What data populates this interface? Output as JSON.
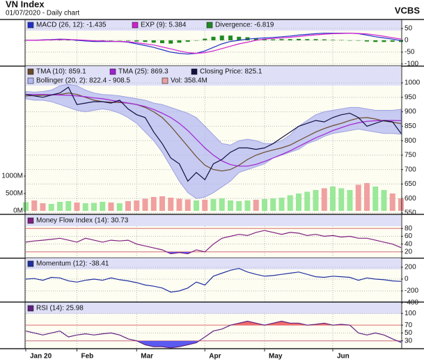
{
  "chart_data": [
    {
      "type": "macd",
      "title": "VN Index",
      "subtitle": "01/07/2020 - Daily chart",
      "source": "VCBS",
      "ylim": [
        -109,
        88
      ],
      "yticks": [
        50,
        0,
        -50,
        -100
      ],
      "series": [
        {
          "name": "MACD (26, 12): -1.435",
          "color": "#2030c8",
          "type": "line",
          "values": [
            0,
            0,
            2,
            3,
            5,
            4,
            0,
            -3,
            -5,
            -5,
            -5,
            -5,
            -8,
            -15,
            -22,
            -30,
            -40,
            -50,
            -55,
            -58,
            -55,
            -45,
            -30,
            -15,
            -5,
            0,
            5,
            8,
            10,
            12,
            15,
            18,
            22,
            25,
            28,
            30,
            30,
            30,
            30,
            28,
            22,
            15,
            10,
            5,
            -1.435
          ]
        },
        {
          "name": "EXP (9): 5.384",
          "color": "#d020d0",
          "type": "line",
          "values": [
            0,
            0,
            1,
            2,
            3,
            3,
            2,
            0,
            -2,
            -3,
            -4,
            -5,
            -6,
            -10,
            -15,
            -20,
            -28,
            -36,
            -45,
            -52,
            -55,
            -52,
            -45,
            -35,
            -25,
            -15,
            -8,
            0,
            5,
            8,
            10,
            13,
            16,
            20,
            23,
            26,
            28,
            29,
            30,
            29,
            27,
            22,
            17,
            11,
            5.384
          ]
        },
        {
          "name": "Divergence: -6.819",
          "color": "#208a20",
          "type": "bar",
          "values": [
            0,
            0,
            1,
            1,
            2,
            1,
            -2,
            -3,
            -3,
            -2,
            -1,
            0,
            -2,
            -5,
            -7,
            -10,
            -12,
            -14,
            -10,
            -6,
            0,
            7,
            15,
            20,
            20,
            15,
            13,
            8,
            5,
            4,
            5,
            5,
            6,
            5,
            5,
            4,
            2,
            1,
            0,
            -1,
            -5,
            -7,
            -7,
            -6,
            -6.819
          ]
        }
      ]
    },
    {
      "type": "price",
      "ylim": [
        545,
        1058
      ],
      "yticks": [
        1000,
        950,
        900,
        850,
        800,
        750,
        700,
        650,
        600,
        550
      ],
      "y2lim": [
        -100,
        4160
      ],
      "y2ticks": [
        {
          "value": 1000,
          "label": "1000M"
        },
        {
          "value": 500,
          "label": "500M"
        },
        {
          "value": 0,
          "label": "0M"
        }
      ],
      "up_color": "#9ae89a",
      "down_color": "#f0a0a0",
      "series": [
        {
          "name": "TMA (10): 859.1",
          "color": "#6b4a2a",
          "type": "line",
          "values": [
            955,
            956,
            957,
            958,
            960,
            965,
            960,
            950,
            940,
            935,
            933,
            932,
            930,
            925,
            915,
            900,
            880,
            850,
            815,
            780,
            745,
            715,
            700,
            695,
            700,
            715,
            735,
            750,
            760,
            768,
            775,
            785,
            800,
            815,
            830,
            842,
            852,
            860,
            870,
            878,
            880,
            875,
            868,
            864,
            859.1
          ]
        },
        {
          "name": "TMA (25): 869.3",
          "color": "#a020d0",
          "type": "line",
          "values": [
            960,
            960,
            960,
            959,
            958,
            957,
            955,
            952,
            948,
            945,
            940,
            935,
            930,
            925,
            918,
            908,
            895,
            880,
            860,
            835,
            805,
            775,
            750,
            730,
            717,
            712,
            712,
            718,
            728,
            740,
            752,
            765,
            780,
            795,
            810,
            822,
            835,
            845,
            855,
            862,
            867,
            869,
            870,
            870,
            869.3
          ]
        },
        {
          "name": "Closing Price: 825.1",
          "color": "#101040",
          "type": "line",
          "values": [
            960,
            955,
            950,
            958,
            965,
            985,
            925,
            930,
            935,
            935,
            930,
            940,
            910,
            890,
            880,
            830,
            790,
            740,
            720,
            660,
            690,
            665,
            720,
            735,
            760,
            775,
            775,
            770,
            775,
            790,
            810,
            830,
            850,
            860,
            870,
            865,
            880,
            890,
            895,
            880,
            850,
            860,
            870,
            865,
            825.1
          ]
        },
        {
          "name": "Bollinger (20, 2): 822.4 - 908.5",
          "color": "#b4b8f0",
          "type": "band",
          "upper": [
            970,
            968,
            970,
            975,
            990,
            995,
            990,
            975,
            965,
            960,
            958,
            955,
            950,
            945,
            940,
            930,
            925,
            915,
            905,
            895,
            880,
            850,
            820,
            790,
            785,
            800,
            805,
            800,
            790,
            790,
            800,
            820,
            850,
            870,
            890,
            900,
            905,
            910,
            915,
            915,
            910,
            905,
            905,
            905,
            908.5
          ],
          "lower": [
            945,
            940,
            940,
            935,
            925,
            915,
            905,
            900,
            905,
            910,
            905,
            895,
            880,
            860,
            830,
            800,
            760,
            710,
            660,
            620,
            600,
            605,
            620,
            640,
            660,
            690,
            700,
            710,
            720,
            740,
            750,
            760,
            770,
            790,
            800,
            815,
            825,
            830,
            835,
            840,
            835,
            830,
            825,
            825,
            822.4
          ]
        },
        {
          "name": "Vol: 358.4M",
          "color": "#e8a0a0",
          "type": "volume",
          "axis": "y2",
          "values": [
            250,
            300,
            220,
            200,
            260,
            280,
            240,
            220,
            230,
            260,
            240,
            220,
            280,
            300,
            350,
            400,
            420,
            380,
            350,
            330,
            300,
            320,
            340,
            360,
            300,
            280,
            300,
            320,
            340,
            360,
            380,
            450,
            500,
            550,
            600,
            650,
            700,
            650,
            600,
            750,
            800,
            700,
            600,
            500,
            358.4
          ]
        }
      ]
    },
    {
      "type": "oscillator",
      "ylim": [
        3.6,
        114.5
      ],
      "yticks": [
        80,
        60,
        40,
        20
      ],
      "overbought": 80,
      "oversold": 20,
      "overbought_color": "#f06a6a",
      "oversold_color": "#5a5af0",
      "series": [
        {
          "name": "Money Flow Index (14): 30.73",
          "color": "#802080",
          "type": "line",
          "values": [
            45,
            48,
            50,
            52,
            55,
            50,
            45,
            55,
            50,
            45,
            50,
            48,
            50,
            40,
            35,
            30,
            25,
            15,
            18,
            15,
            25,
            20,
            40,
            55,
            60,
            65,
            62,
            70,
            75,
            70,
            65,
            70,
            68,
            62,
            65,
            60,
            62,
            58,
            60,
            55,
            55,
            50,
            45,
            40,
            30.73
          ]
        }
      ]
    },
    {
      "type": "oscillator",
      "ylim": [
        -388,
        353
      ],
      "yticks": [
        200,
        0,
        -200,
        -400
      ],
      "series": [
        {
          "name": "Momentum (12): -38.41",
          "color": "#2030a0",
          "type": "line",
          "values": [
            0,
            10,
            -20,
            30,
            20,
            -30,
            -50,
            -20,
            0,
            -20,
            20,
            -10,
            -30,
            -60,
            -100,
            -120,
            -150,
            -220,
            -200,
            -150,
            -50,
            -100,
            50,
            100,
            150,
            180,
            120,
            80,
            50,
            60,
            80,
            100,
            120,
            80,
            40,
            30,
            50,
            40,
            30,
            -20,
            20,
            0,
            -10,
            -30,
            -38.41
          ]
        }
      ]
    },
    {
      "type": "oscillator",
      "ylim": [
        10,
        127
      ],
      "yticks": [
        100,
        70,
        50,
        30
      ],
      "overbought": 70,
      "oversold": 30,
      "overbought_color": "#f06a6a",
      "oversold_color": "#5a5af0",
      "categories": [
        "Jan 20",
        null,
        null,
        null,
        null,
        null,
        "Feb",
        null,
        null,
        null,
        null,
        null,
        null,
        "Mar",
        null,
        null,
        null,
        null,
        null,
        null,
        null,
        "Apr",
        null,
        null,
        null,
        null,
        null,
        null,
        "May",
        null,
        null,
        null,
        null,
        null,
        null,
        null,
        "Jun",
        null,
        null,
        null,
        null,
        null,
        null,
        null,
        null
      ],
      "series": [
        {
          "name": "RSI (14): 25.98",
          "color": "#602080",
          "type": "line",
          "values": [
            55,
            50,
            45,
            50,
            55,
            40,
            45,
            48,
            45,
            48,
            50,
            45,
            35,
            30,
            20,
            15,
            15,
            12,
            15,
            20,
            25,
            40,
            55,
            60,
            70,
            75,
            80,
            75,
            70,
            75,
            80,
            75,
            75,
            70,
            72,
            75,
            70,
            72,
            70,
            50,
            45,
            50,
            45,
            35,
            25.98
          ]
        }
      ]
    }
  ]
}
